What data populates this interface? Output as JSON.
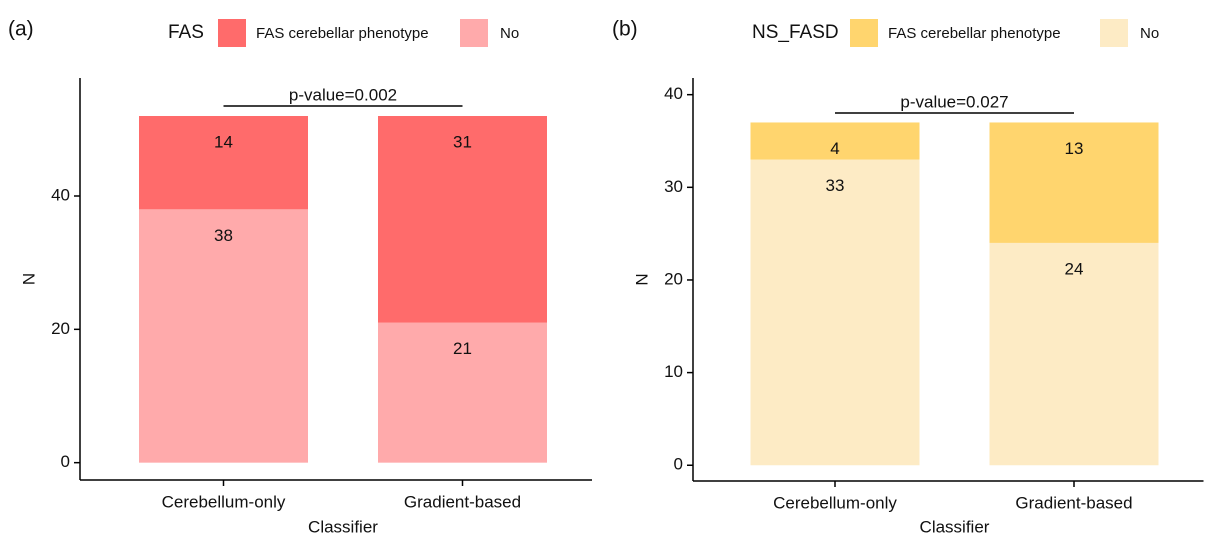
{
  "chart_data": [
    {
      "type": "stacked_bar",
      "panel_label": "(a)",
      "legend_title": "FAS",
      "x_label": "Classifier",
      "y_label": "N",
      "annotation": "p-value=0.002",
      "categories": [
        "Cerebellum-only",
        "Gradient-based"
      ],
      "series": [
        {
          "name": "No",
          "color": "#ffaaab",
          "values": [
            38,
            21
          ]
        },
        {
          "name": "FAS cerebellar phenotype",
          "color": "#ff6b6b",
          "values": [
            14,
            31
          ]
        }
      ],
      "ylim": [
        -2.6,
        57.7
      ],
      "yticks": [
        0,
        20,
        40
      ]
    },
    {
      "type": "stacked_bar",
      "panel_label": "(b)",
      "legend_title": "NS_FASD",
      "x_label": "Classifier",
      "y_label": "N",
      "annotation": "p-value=0.027",
      "categories": [
        "Cerebellum-only",
        "Gradient-based"
      ],
      "series": [
        {
          "name": "No",
          "color": "#fdebc5",
          "values": [
            33,
            24
          ]
        },
        {
          "name": "FAS cerebellar phenotype",
          "color": "#ffd56e",
          "values": [
            4,
            13
          ]
        }
      ],
      "ylim": [
        -1.7,
        41.8
      ],
      "yticks": [
        0,
        10,
        20,
        30,
        40
      ]
    }
  ]
}
